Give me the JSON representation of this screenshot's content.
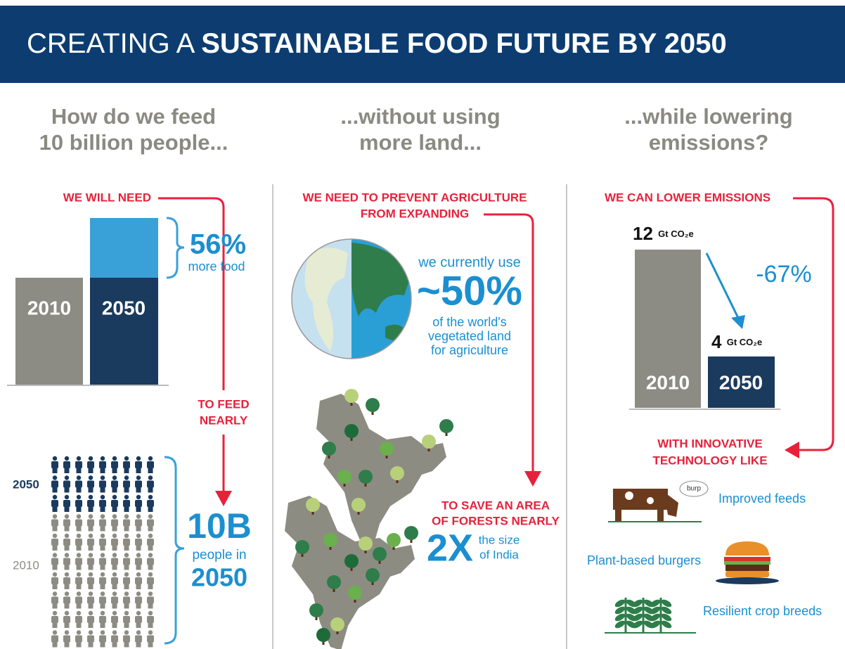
{
  "header": {
    "title_light": "CREATING A",
    "title_bold": "SUSTAINABLE FOOD FUTURE BY 2050"
  },
  "columns": [
    {
      "heading": [
        "How do we feed",
        "10 billion people..."
      ],
      "need_label": "WE WILL NEED",
      "increase": "56%",
      "increase_note": "more food",
      "bar_labels": [
        "2010",
        "2050"
      ],
      "feed_label": [
        "TO FEED",
        "NEARLY"
      ],
      "people_labels": [
        "2050",
        "2010"
      ],
      "population": "10B",
      "population_note": [
        "people in",
        "2050"
      ]
    },
    {
      "heading": [
        "...without using",
        "more land..."
      ],
      "prevent_label": [
        "WE NEED TO PREVENT AGRICULTURE",
        "FROM EXPANDING"
      ],
      "use_intro": "we currently use",
      "use_share": "~50%",
      "use_note": [
        "of the world's",
        "vegetated land",
        "for agriculture"
      ],
      "save_label": [
        "TO SAVE AN AREA",
        "OF FORESTS NEARLY"
      ],
      "save_factor": "2X",
      "save_note": [
        "the size",
        "of India"
      ]
    },
    {
      "heading": [
        "...while lowering",
        "emissions?"
      ],
      "lower_label": "WE CAN LOWER EMISSIONS",
      "emissions": [
        {
          "year": "2010",
          "amount": "12",
          "unit": "Gt CO₂e"
        },
        {
          "year": "2050",
          "amount": "4",
          "unit": "Gt CO₂e"
        }
      ],
      "reduction": "-67%",
      "tech_label": [
        "WITH INNOVATIVE",
        "TECHNOLOGY LIKE"
      ],
      "bubble": "burp",
      "technologies": [
        "Improved feeds",
        "Plant-based burgers",
        "Resilient crop breeds"
      ]
    }
  ]
}
